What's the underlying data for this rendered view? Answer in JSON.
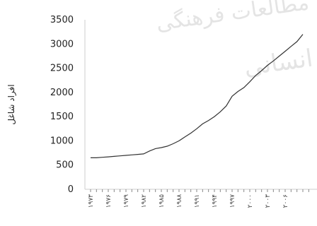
{
  "chart_data": {
    "type": "line",
    "ylabel": "افراد شاغل",
    "watermark": [
      "مطالعات فرهنگی",
      "انسانی"
    ],
    "ylim": [
      0,
      3500
    ],
    "yticks": [
      0,
      500,
      1000,
      1500,
      2000,
      2500,
      3000,
      3500
    ],
    "xlim": [
      1973,
      2010
    ],
    "xticks": [
      {
        "value": 1973,
        "label": "۱۹۷۳"
      },
      {
        "value": 1976,
        "label": "۱۹۷۶"
      },
      {
        "value": 1979,
        "label": "۱۹۷۹"
      },
      {
        "value": 1982,
        "label": "۱۹۸۲"
      },
      {
        "value": 1985,
        "label": "۱۹۸۵"
      },
      {
        "value": 1988,
        "label": "۱۹۸۸"
      },
      {
        "value": 1991,
        "label": "۱۹۹۱"
      },
      {
        "value": 1994,
        "label": "۱۹۹۴"
      },
      {
        "value": 1997,
        "label": "۱۹۹۷"
      },
      {
        "value": 2000,
        "label": "۲۰۰۰"
      },
      {
        "value": 2003,
        "label": "۲۰۰۳"
      },
      {
        "value": 2006,
        "label": "۲۰۰۶"
      }
    ],
    "series": [
      {
        "color": "#333333",
        "x": [
          1973,
          1974,
          1975,
          1976,
          1977,
          1978,
          1979,
          1980,
          1981,
          1982,
          1983,
          1984,
          1985,
          1986,
          1987,
          1988,
          1989,
          1990,
          1991,
          1992,
          1993,
          1994,
          1995,
          1996,
          1997,
          1998,
          1999,
          2000,
          2001,
          2002,
          2003,
          2004,
          2005,
          2006,
          2007,
          2008,
          2009
        ],
        "y": [
          650,
          650,
          660,
          670,
          680,
          690,
          700,
          710,
          720,
          730,
          790,
          840,
          860,
          890,
          940,
          1000,
          1080,
          1160,
          1250,
          1350,
          1420,
          1500,
          1600,
          1720,
          1920,
          2020,
          2100,
          2220,
          2350,
          2450,
          2560,
          2650,
          2750,
          2850,
          2950,
          3050,
          3200
        ]
      }
    ]
  }
}
